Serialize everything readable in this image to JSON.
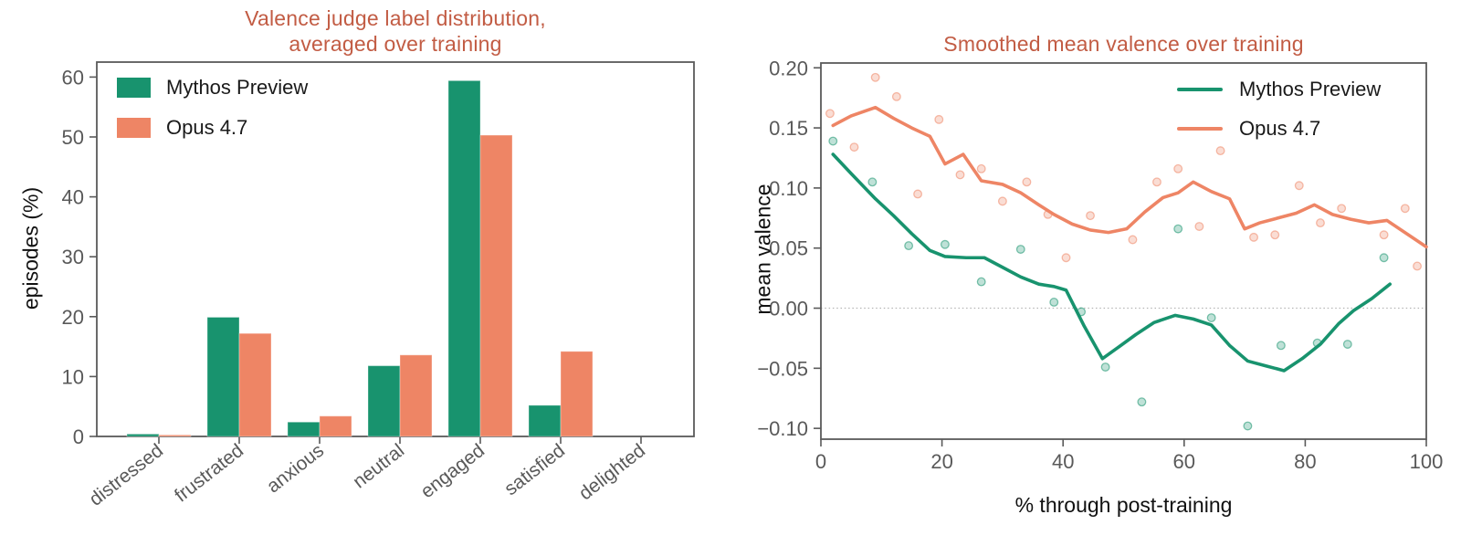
{
  "colors": {
    "background": "#ffffff",
    "green": "#18936e",
    "orange": "#ee8565",
    "title": "#c25c44",
    "tick_label": "#595959",
    "axis_label": "#111111",
    "spine": "#5a5a5a",
    "zero_line": "#b5b5b5"
  },
  "chart_data": [
    {
      "type": "bar",
      "title": "Valence judge label distribution, averaged over training",
      "title_lines": [
        "Valence judge label distribution,",
        "averaged over training"
      ],
      "ylabel": "episodes (%)",
      "xlabel": "",
      "categories": [
        "distressed",
        "frustrated",
        "anxious",
        "neutral",
        "engaged",
        "satisfied",
        "delighted"
      ],
      "yticks": [
        0,
        10,
        20,
        30,
        40,
        50,
        60
      ],
      "ytick_labels": [
        "0",
        "10",
        "20",
        "30",
        "40",
        "50",
        "60"
      ],
      "ylim": [
        0,
        62.5
      ],
      "grid": false,
      "legend_position": "upper-left",
      "series": [
        {
          "name": "Mythos Preview",
          "color": "#18936e",
          "values": [
            0.4,
            19.9,
            2.4,
            11.8,
            59.4,
            5.2,
            0.0
          ]
        },
        {
          "name": "Opus 4.7",
          "color": "#ee8565",
          "values": [
            0.25,
            17.2,
            3.4,
            13.6,
            50.3,
            14.2,
            0.0
          ]
        }
      ]
    },
    {
      "type": "line",
      "title": "Smoothed mean valence over training",
      "ylabel": "mean valence",
      "xlabel": "% through post-training",
      "xticks": [
        0,
        20,
        40,
        60,
        80,
        100
      ],
      "xtick_labels": [
        "0",
        "20",
        "40",
        "60",
        "80",
        "100"
      ],
      "yticks": [
        0.2,
        0.15,
        0.1,
        0.05,
        0.0,
        -0.05,
        -0.1
      ],
      "ytick_labels": [
        "0.20",
        "0.15",
        "0.10",
        "0.05",
        "0.00",
        "−0.05",
        "−0.10"
      ],
      "xlim": [
        0,
        100
      ],
      "ylim": [
        -0.109,
        0.204
      ],
      "grid": false,
      "zero_line": 0.0,
      "legend_position": "upper-right",
      "series": [
        {
          "name": "Mythos Preview",
          "color": "#18936e",
          "line": {
            "x": [
              2,
              5,
              9,
              12,
              15,
              18,
              20.5,
              24,
              27,
              30,
              33,
              36,
              38.5,
              40.5,
              43.5,
              46.5,
              49,
              52,
              55,
              58.5,
              61.5,
              64.5,
              67.5,
              70.5,
              73.5,
              76.5,
              79.5,
              82.5,
              85.5,
              88,
              91,
              94
            ],
            "y": [
              0.128,
              0.112,
              0.091,
              0.077,
              0.062,
              0.048,
              0.043,
              0.042,
              0.042,
              0.034,
              0.026,
              0.02,
              0.018,
              0.015,
              -0.015,
              -0.042,
              -0.033,
              -0.022,
              -0.012,
              -0.006,
              -0.009,
              -0.014,
              -0.031,
              -0.044,
              -0.048,
              -0.052,
              -0.042,
              -0.03,
              -0.013,
              -0.002,
              0.008,
              0.02
            ]
          },
          "scatter": {
            "x": [
              2,
              8.5,
              14.5,
              20.5,
              26.5,
              33,
              38.5,
              43,
              47,
              53,
              59,
              64.5,
              70.5,
              76,
              82,
              87,
              93
            ],
            "y": [
              0.139,
              0.105,
              0.052,
              0.053,
              0.022,
              0.049,
              0.005,
              -0.003,
              -0.049,
              -0.078,
              0.066,
              -0.008,
              -0.098,
              -0.031,
              -0.029,
              -0.03,
              0.042
            ]
          }
        },
        {
          "name": "Opus 4.7",
          "color": "#ee8565",
          "line": {
            "x": [
              2,
              5,
              9,
              12,
              15,
              18,
              20.5,
              23.5,
              26.5,
              30,
              33,
              36,
              38.5,
              41.5,
              44.5,
              47.5,
              50.5,
              53.5,
              56.5,
              59,
              61.5,
              64.5,
              67.5,
              70,
              72.5,
              75.5,
              78.5,
              81.5,
              84.5,
              87.5,
              90.5,
              93.5,
              100
            ],
            "y": [
              0.152,
              0.16,
              0.167,
              0.158,
              0.15,
              0.143,
              0.12,
              0.128,
              0.106,
              0.103,
              0.096,
              0.086,
              0.078,
              0.07,
              0.065,
              0.063,
              0.066,
              0.08,
              0.092,
              0.096,
              0.105,
              0.097,
              0.091,
              0.066,
              0.071,
              0.075,
              0.079,
              0.086,
              0.078,
              0.074,
              0.071,
              0.073,
              0.051
            ]
          },
          "scatter": {
            "x": [
              1.5,
              5.5,
              9,
              12.5,
              16,
              19.5,
              23,
              26.5,
              30,
              34,
              37.5,
              40.5,
              44.5,
              51.5,
              55.5,
              59,
              62.5,
              66,
              71.5,
              75,
              79,
              82.5,
              86,
              93,
              96.5,
              98.5
            ],
            "y": [
              0.162,
              0.134,
              0.192,
              0.176,
              0.095,
              0.157,
              0.111,
              0.116,
              0.089,
              0.105,
              0.078,
              0.042,
              0.077,
              0.057,
              0.105,
              0.116,
              0.068,
              0.131,
              0.059,
              0.061,
              0.102,
              0.071,
              0.083,
              0.061,
              0.083,
              0.035
            ]
          }
        }
      ]
    }
  ]
}
